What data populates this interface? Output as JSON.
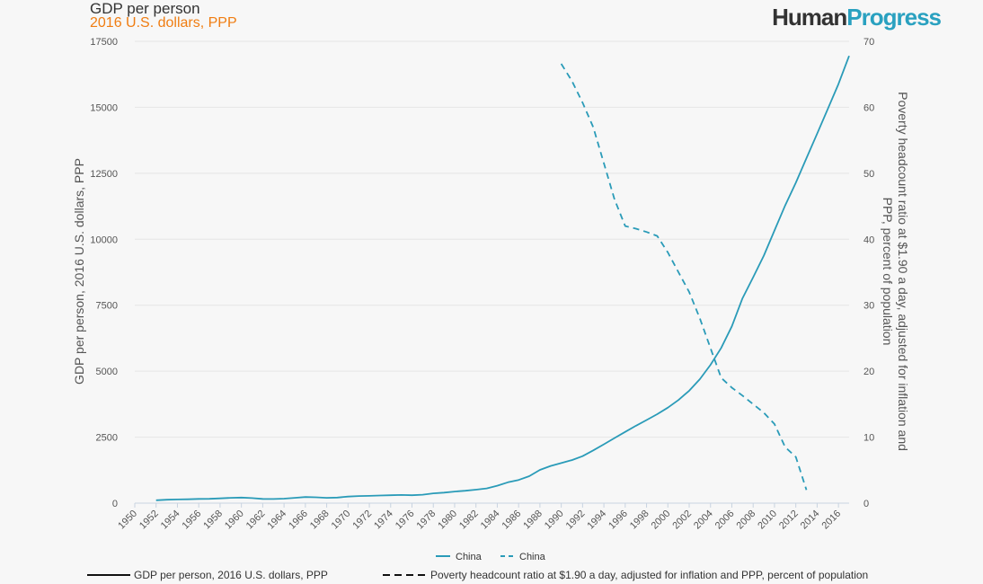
{
  "header": {
    "title": "GDP per person",
    "subtitle": "2016 U.S. dollars, PPP",
    "logo_part1": "Human",
    "logo_part2": "Progress"
  },
  "colors": {
    "series": "#2a9bb8",
    "subtitle": "#f07d12",
    "logo_accent": "#2aa1c0"
  },
  "legend": {
    "series1": "China",
    "series2": "China"
  },
  "bottom_legend": {
    "solid_label": "GDP per person, 2016 U.S. dollars, PPP",
    "dashed_label": "Poverty headcount ratio at $1.90 a day, adjusted for inflation and PPP, percent of population"
  },
  "chart_data": {
    "type": "line",
    "title": "GDP per person",
    "subtitle": "2016 U.S. dollars, PPP",
    "ylabel": "GDP per person, 2016 U.S. dollars, PPP",
    "y2label": "Poverty headcount ratio at $1.90 a day, adjusted for inflation and PPP, percent of population",
    "xlim": [
      1950,
      2017
    ],
    "ylim": [
      0,
      17500
    ],
    "y2lim": [
      0,
      70
    ],
    "x_ticks": [
      "1950",
      "1952",
      "1954",
      "1956",
      "1958",
      "1960",
      "1962",
      "1964",
      "1966",
      "1968",
      "1970",
      "1972",
      "1974",
      "1976",
      "1978",
      "1980",
      "1982",
      "1984",
      "1986",
      "1988",
      "1990",
      "1992",
      "1994",
      "1996",
      "1998",
      "2000",
      "2002",
      "2004",
      "2006",
      "2008",
      "2010",
      "2012",
      "2014",
      "2016"
    ],
    "y_ticks": [
      "0",
      "2500",
      "5000",
      "7500",
      "10000",
      "12500",
      "15000",
      "17500"
    ],
    "y2_ticks": [
      "0",
      "10",
      "20",
      "30",
      "40",
      "50",
      "60",
      "70"
    ],
    "series": [
      {
        "name": "China",
        "axis": "left",
        "style": "solid",
        "x": [
          1952,
          1953,
          1954,
          1955,
          1956,
          1957,
          1958,
          1959,
          1960,
          1961,
          1962,
          1963,
          1964,
          1965,
          1966,
          1967,
          1968,
          1969,
          1970,
          1971,
          1972,
          1973,
          1974,
          1975,
          1976,
          1977,
          1978,
          1979,
          1980,
          1981,
          1982,
          1983,
          1984,
          1985,
          1986,
          1987,
          1988,
          1989,
          1990,
          1991,
          1992,
          1993,
          1994,
          1995,
          1996,
          1997,
          1998,
          1999,
          2000,
          2001,
          2002,
          2003,
          2004,
          2005,
          2006,
          2007,
          2008,
          2009,
          2010,
          2011,
          2012,
          2013,
          2014,
          2015,
          2016,
          2017
        ],
        "values": [
          110,
          130,
          140,
          145,
          160,
          165,
          180,
          200,
          210,
          190,
          160,
          155,
          170,
          200,
          230,
          220,
          200,
          210,
          250,
          270,
          275,
          290,
          300,
          310,
          300,
          320,
          370,
          400,
          440,
          470,
          510,
          560,
          660,
          790,
          880,
          1020,
          1260,
          1410,
          1520,
          1630,
          1780,
          2000,
          2230,
          2470,
          2700,
          2930,
          3150,
          3370,
          3620,
          3910,
          4260,
          4700,
          5240,
          5880,
          6700,
          7760,
          8560,
          9380,
          10330,
          11280,
          12140,
          13070,
          14000,
          14940,
          15880,
          16950
        ]
      },
      {
        "name": "China",
        "axis": "right",
        "style": "dashed",
        "x": [
          1990,
          1991,
          1992,
          1993,
          1994,
          1995,
          1996,
          1997,
          1998,
          1999,
          2000,
          2001,
          2002,
          2003,
          2004,
          2005,
          2006,
          2007,
          2008,
          2009,
          2010,
          2011,
          2012,
          2013
        ],
        "values": [
          66.6,
          64,
          60.7,
          57,
          51.5,
          46,
          42,
          41.6,
          41.1,
          40.5,
          38,
          35,
          32,
          28,
          23.5,
          19,
          17.5,
          16.3,
          15,
          13.7,
          12,
          8.5,
          7,
          2
        ]
      }
    ]
  }
}
